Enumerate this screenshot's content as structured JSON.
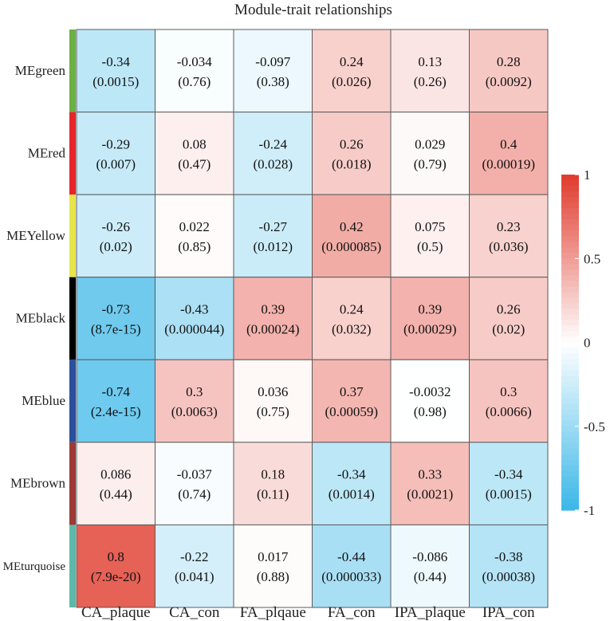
{
  "chart_data": {
    "type": "heatmap",
    "title": "Module-trait relationships",
    "rows": [
      "MEgreen",
      "MEred",
      "MEYellow",
      "MEblack",
      "MEblue",
      "MEbrown",
      "MEturquoise"
    ],
    "row_colors": [
      "#6ab045",
      "#e5242b",
      "#e6e54a",
      "#000000",
      "#2b4f9e",
      "#9b3a36",
      "#5fb8a8"
    ],
    "columns": [
      "CA_plaque",
      "CA_con",
      "FA_plqaue",
      "FA_con",
      "IPA_plaque",
      "IPA_con"
    ],
    "values": [
      [
        -0.34,
        -0.034,
        -0.097,
        0.24,
        0.13,
        0.28
      ],
      [
        -0.29,
        0.08,
        -0.24,
        0.26,
        0.029,
        0.4
      ],
      [
        -0.26,
        0.022,
        -0.27,
        0.42,
        0.075,
        0.23
      ],
      [
        -0.73,
        -0.43,
        0.39,
        0.24,
        0.39,
        0.26
      ],
      [
        -0.74,
        0.3,
        0.036,
        0.37,
        -0.0032,
        0.3
      ],
      [
        0.086,
        -0.037,
        0.18,
        -0.34,
        0.33,
        -0.34
      ],
      [
        0.8,
        -0.22,
        0.017,
        -0.44,
        -0.086,
        -0.38
      ]
    ],
    "value_labels": [
      [
        "-0.34",
        "-0.034",
        "-0.097",
        "0.24",
        "0.13",
        "0.28"
      ],
      [
        "-0.29",
        "0.08",
        "-0.24",
        "0.26",
        "0.029",
        "0.4"
      ],
      [
        "-0.26",
        "0.022",
        "-0.27",
        "0.42",
        "0.075",
        "0.23"
      ],
      [
        "-0.73",
        "-0.43",
        "0.39",
        "0.24",
        "0.39",
        "0.26"
      ],
      [
        "-0.74",
        "0.3",
        "0.036",
        "0.37",
        "-0.0032",
        "0.3"
      ],
      [
        "0.086",
        "-0.037",
        "0.18",
        "-0.34",
        "0.33",
        "-0.34"
      ],
      [
        "0.8",
        "-0.22",
        "0.017",
        "-0.44",
        "-0.086",
        "-0.38"
      ]
    ],
    "pvalue_labels": [
      [
        "(0.0015)",
        "(0.76)",
        "(0.38)",
        "(0.026)",
        "(0.26)",
        "(0.0092)"
      ],
      [
        "(0.007)",
        "(0.47)",
        "(0.028)",
        "(0.018)",
        "(0.79)",
        "(0.00019)"
      ],
      [
        "(0.02)",
        "(0.85)",
        "(0.012)",
        "(0.000085)",
        "(0.5)",
        "(0.036)"
      ],
      [
        "(8.7e-15)",
        "(0.000044)",
        "(0.00024)",
        "(0.032)",
        "(0.00029)",
        "(0.02)"
      ],
      [
        "(2.4e-15)",
        "(0.0063)",
        "(0.75)",
        "(0.00059)",
        "(0.98)",
        "(0.0066)"
      ],
      [
        "(0.44)",
        "(0.74)",
        "(0.11)",
        "(0.0014)",
        "(0.0021)",
        "(0.0015)"
      ],
      [
        "(7.9e-20)",
        "(0.041)",
        "(0.88)",
        "(0.000033)",
        "(0.44)",
        "(0.00038)"
      ]
    ],
    "colorbar": {
      "range": [
        -1,
        1
      ],
      "ticks": [
        1,
        0.5,
        0,
        -0.5,
        -1
      ],
      "tick_labels": [
        "1",
        "0.5",
        "0",
        "-0.5",
        "-1"
      ],
      "low_color": "#3bb7e8",
      "mid_color": "#ffffff",
      "high_color": "#e03a2c"
    }
  }
}
